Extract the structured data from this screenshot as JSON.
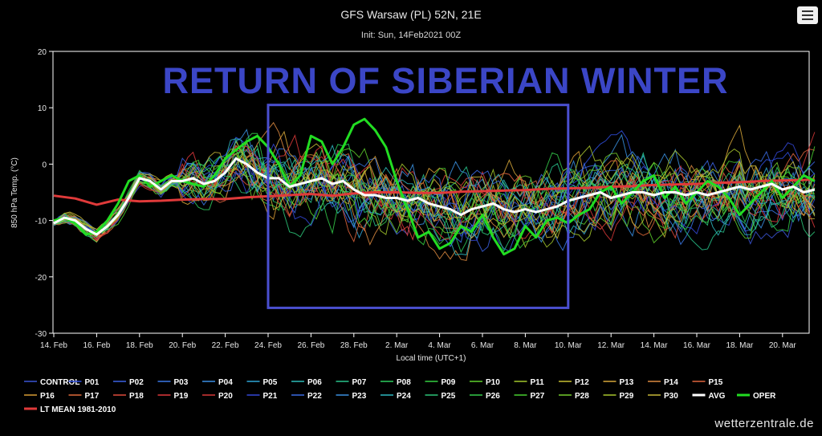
{
  "header": {
    "title": "GFS Warsaw (PL) 52N, 21E",
    "subtitle": "Init: Sun, 14Feb2021 00Z"
  },
  "overlay": {
    "headline": "RETURN OF SIBERIAN WINTER",
    "highlight_box": {
      "x_start": "24. Feb",
      "x_end": "10. Mar",
      "y_range": [
        -25.5,
        10.5
      ],
      "color": "#4a4fd0"
    }
  },
  "watermark": "wetterzentrale.de",
  "chart_data": {
    "type": "line",
    "title": "GFS Warsaw (PL) 52N, 21E",
    "subtitle": "Init: Sun, 14Feb2021 00Z",
    "xlabel": "Local time (UTC+1)",
    "ylabel": "850 hPa Temp. (°C)",
    "ylim": [
      -30,
      20
    ],
    "yticks": [
      "20",
      "10",
      "0",
      "-10",
      "-20",
      "-30"
    ],
    "xticks": [
      "14. Feb",
      "16. Feb",
      "18. Feb",
      "20. Feb",
      "22. Feb",
      "24. Feb",
      "26. Feb",
      "28. Feb",
      "2. Mar",
      "4. Mar",
      "6. Mar",
      "8. Mar",
      "10. Mar",
      "12. Mar",
      "14. Mar",
      "16. Mar",
      "18. Mar",
      "20. Mar"
    ],
    "x_range_days": [
      0,
      35.5
    ],
    "grid": false,
    "legend_position": "bottom",
    "series": [
      {
        "name": "CONTROL",
        "color": "#3b55d6",
        "style": "ensemble"
      },
      {
        "name": "P01",
        "color": "#2f4fe0",
        "style": "ensemble"
      },
      {
        "name": "P02",
        "color": "#3c63e6",
        "style": "ensemble"
      },
      {
        "name": "P03",
        "color": "#3a78e8",
        "style": "ensemble"
      },
      {
        "name": "P04",
        "color": "#3a8fe4",
        "style": "ensemble"
      },
      {
        "name": "P05",
        "color": "#2fa7d8",
        "style": "ensemble"
      },
      {
        "name": "P06",
        "color": "#2cbcb8",
        "style": "ensemble"
      },
      {
        "name": "P07",
        "color": "#28c48c",
        "style": "ensemble"
      },
      {
        "name": "P08",
        "color": "#2ccc5e",
        "style": "ensemble"
      },
      {
        "name": "P09",
        "color": "#34d040",
        "style": "ensemble"
      },
      {
        "name": "P10",
        "color": "#5ed02c",
        "style": "ensemble"
      },
      {
        "name": "P11",
        "color": "#a2c82c",
        "style": "ensemble"
      },
      {
        "name": "P12",
        "color": "#c8c032",
        "style": "ensemble"
      },
      {
        "name": "P13",
        "color": "#d8a83a",
        "style": "ensemble"
      },
      {
        "name": "P14",
        "color": "#dc8a40",
        "style": "ensemble"
      },
      {
        "name": "P15",
        "color": "#e0663e",
        "style": "ensemble"
      },
      {
        "name": "P16",
        "color": "#d89c34",
        "style": "ensemble"
      },
      {
        "name": "P17",
        "color": "#e06a3a",
        "style": "ensemble"
      },
      {
        "name": "P18",
        "color": "#e04c3c",
        "style": "ensemble"
      },
      {
        "name": "P19",
        "color": "#e0383c",
        "style": "ensemble"
      },
      {
        "name": "P20",
        "color": "#d83838",
        "style": "ensemble"
      },
      {
        "name": "P21",
        "color": "#3448d8",
        "style": "ensemble"
      },
      {
        "name": "P22",
        "color": "#3a6ae2",
        "style": "ensemble"
      },
      {
        "name": "P23",
        "color": "#3a90e0",
        "style": "ensemble"
      },
      {
        "name": "P24",
        "color": "#2eb8c0",
        "style": "ensemble"
      },
      {
        "name": "P25",
        "color": "#2cc478",
        "style": "ensemble"
      },
      {
        "name": "P26",
        "color": "#34ca4a",
        "style": "ensemble"
      },
      {
        "name": "P27",
        "color": "#48d030",
        "style": "ensemble"
      },
      {
        "name": "P28",
        "color": "#74cc2c",
        "style": "ensemble"
      },
      {
        "name": "P29",
        "color": "#a8c62e",
        "style": "ensemble"
      },
      {
        "name": "P30",
        "color": "#c8b838",
        "style": "ensemble"
      },
      {
        "name": "AVG",
        "color": "#ffffff",
        "style": "bold",
        "x": [
          0,
          0.5,
          1,
          1.5,
          2,
          2.5,
          3,
          3.5,
          4,
          4.5,
          5,
          5.5,
          6,
          6.5,
          7,
          7.5,
          8,
          8.5,
          9,
          9.5,
          10,
          10.5,
          11,
          11.5,
          12,
          12.5,
          13,
          13.5,
          14,
          14.5,
          15,
          15.5,
          16,
          16.5,
          17,
          17.5,
          18,
          18.5,
          19,
          19.5,
          20,
          20.5,
          21,
          21.5,
          22,
          22.5,
          23,
          23.5,
          24,
          24.5,
          25,
          25.5,
          26,
          26.5,
          27,
          27.5,
          28,
          28.5,
          29,
          29.5,
          30,
          30.5,
          31,
          31.5,
          32,
          32.5,
          33,
          33.5,
          34,
          34.5,
          35,
          35.5
        ],
        "values": [
          -10.5,
          -9.5,
          -10,
          -11.5,
          -12.5,
          -11,
          -9,
          -6,
          -2.5,
          -3,
          -4.5,
          -3,
          -3,
          -2.5,
          -3.5,
          -3,
          -1.5,
          1,
          0,
          -1.5,
          -2.5,
          -2.5,
          -4,
          -3.5,
          -3,
          -2.5,
          -3.5,
          -3,
          -4.5,
          -5.5,
          -5.5,
          -6,
          -6,
          -6.5,
          -6,
          -7,
          -7.5,
          -8,
          -9,
          -8,
          -7.5,
          -7,
          -8,
          -8.5,
          -8,
          -8.5,
          -8,
          -7.5,
          -6.5,
          -6,
          -5.5,
          -5,
          -6,
          -5.5,
          -5,
          -5,
          -5.5,
          -5,
          -5,
          -5.5,
          -5,
          -5.5,
          -5,
          -4.5,
          -4,
          -4.5,
          -4,
          -3.5,
          -4.5,
          -4,
          -5,
          -4.5
        ]
      },
      {
        "name": "OPER",
        "color": "#22dd22",
        "style": "bold",
        "x": [
          0,
          0.5,
          1,
          1.5,
          2,
          2.5,
          3,
          3.5,
          4,
          4.5,
          5,
          5.5,
          6,
          6.5,
          7,
          7.5,
          8,
          8.5,
          9,
          9.5,
          10,
          10.5,
          11,
          11.5,
          12,
          12.5,
          13,
          13.5,
          14,
          14.5,
          15,
          15.5,
          16,
          16.5,
          17,
          17.5,
          18,
          18.5,
          19,
          19.5,
          20,
          20.5,
          21,
          21.5,
          22,
          22.5,
          23,
          23.5,
          24,
          24.5,
          25,
          25.5,
          26,
          26.5,
          27,
          27.5,
          28,
          28.5,
          29,
          29.5,
          30,
          30.5,
          31,
          31.5,
          32,
          32.5,
          33,
          33.5,
          34,
          34.5,
          35,
          35.5
        ],
        "values": [
          -10,
          -9.5,
          -10.5,
          -12.5,
          -12,
          -10,
          -7,
          -3,
          -2,
          -4,
          -3,
          -2,
          -3,
          -3.5,
          -4,
          -2,
          1,
          2.5,
          4,
          5,
          3,
          0,
          -4,
          -2,
          5,
          4,
          0,
          3,
          7,
          8,
          6,
          3,
          -3,
          -8,
          -13,
          -12,
          -15,
          -14,
          -11,
          -12,
          -9,
          -13,
          -16,
          -15,
          -11,
          -13,
          -10,
          -9.5,
          -10.5,
          -9,
          -8,
          -5,
          -4,
          -7,
          -5,
          -3,
          -2,
          -6,
          -4,
          -7,
          -5,
          -3,
          -4,
          -6,
          -9,
          -7,
          -5,
          -3,
          -6,
          -4,
          -2,
          -3
        ]
      },
      {
        "name": "LT MEAN 1981-2010",
        "color": "#e03a3a",
        "style": "bold",
        "x": [
          0,
          1,
          2,
          3,
          4,
          5,
          6,
          7,
          8,
          9,
          10,
          11,
          12,
          13,
          14,
          15,
          16,
          17,
          18,
          19,
          20,
          21,
          22,
          23,
          24,
          25,
          26,
          27,
          28,
          29,
          30,
          31,
          32,
          33,
          34,
          35,
          35.5
        ],
        "values": [
          -5.6,
          -6.1,
          -7.2,
          -6.3,
          -6.6,
          -6.5,
          -6.3,
          -6.2,
          -6.2,
          -5.9,
          -5.7,
          -5.5,
          -5.3,
          -5.6,
          -5.2,
          -5.0,
          -5.0,
          -5.1,
          -5.1,
          -4.9,
          -4.8,
          -4.7,
          -4.6,
          -4.4,
          -4.3,
          -4.2,
          -4.0,
          -3.9,
          -3.7,
          -3.6,
          -3.5,
          -3.3,
          -3.2,
          -3.0,
          -2.9,
          -2.8,
          -2.7
        ]
      }
    ]
  }
}
